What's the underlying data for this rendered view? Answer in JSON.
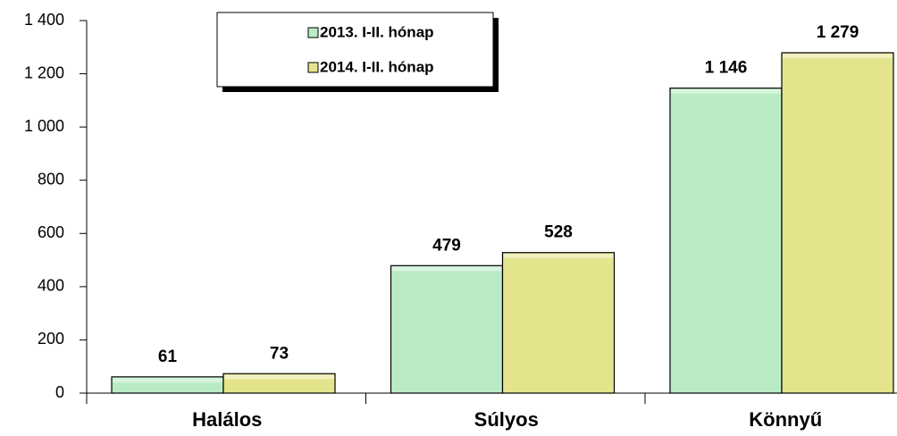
{
  "chart_data": {
    "type": "bar",
    "categories": [
      "Halálos",
      "Súlyos",
      "Könnyű"
    ],
    "series": [
      {
        "name": "2013. I-II. hónap",
        "color": "#b9ecc4",
        "values": [
          61,
          479,
          1146
        ],
        "value_labels": [
          "61",
          "479",
          "1 146"
        ]
      },
      {
        "name": "2014. I-II. hónap",
        "color": "#e4e48c",
        "values": [
          73,
          528,
          1279
        ],
        "value_labels": [
          "73",
          "528",
          "1 279"
        ]
      }
    ],
    "ylim": [
      0,
      1400
    ],
    "yticks": [
      0,
      200,
      400,
      600,
      800,
      {
        "value": 1000,
        "label": "1 000"
      },
      {
        "value": 1200,
        "label": "1 200"
      },
      {
        "value": 1400,
        "label": "1 400"
      }
    ]
  }
}
